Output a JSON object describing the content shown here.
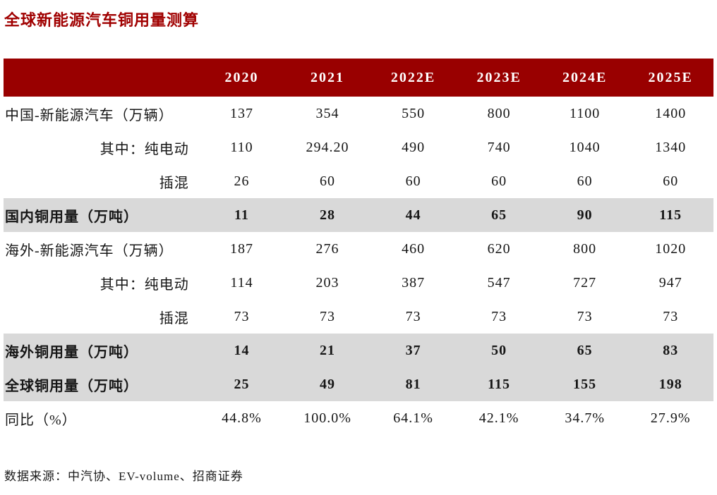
{
  "title": "全球新能源汽车铜用量测算",
  "source": "数据来源：中汽协、EV-volume、招商证券",
  "colors": {
    "header_bg": "#990000",
    "title_text": "#A00000",
    "highlight_row_bg": "#D9D9D9",
    "header_text": "#FFFFFF"
  },
  "table": {
    "columns": [
      "",
      "2020",
      "2021",
      "2022E",
      "2023E",
      "2024E",
      "2025E"
    ],
    "rows": [
      {
        "label": "中国-新能源汽车（万辆）",
        "style": "section",
        "values": [
          "137",
          "354",
          "550",
          "800",
          "1100",
          "1400"
        ]
      },
      {
        "label": "其中：纯电动",
        "style": "sub",
        "values": [
          "110",
          "294.20",
          "490",
          "740",
          "1040",
          "1340"
        ]
      },
      {
        "label": "插混",
        "style": "sub",
        "values": [
          "26",
          "60",
          "60",
          "60",
          "60",
          "60"
        ]
      },
      {
        "label": "国内铜用量（万吨）",
        "style": "highlight",
        "values": [
          "11",
          "28",
          "44",
          "65",
          "90",
          "115"
        ]
      },
      {
        "label": "海外-新能源汽车（万辆）",
        "style": "section",
        "values": [
          "187",
          "276",
          "460",
          "620",
          "800",
          "1020"
        ]
      },
      {
        "label": "其中：纯电动",
        "style": "sub",
        "values": [
          "114",
          "203",
          "387",
          "547",
          "727",
          "947"
        ]
      },
      {
        "label": "插混",
        "style": "sub",
        "values": [
          "73",
          "73",
          "73",
          "73",
          "73",
          "73"
        ]
      },
      {
        "label": "海外铜用量（万吨）",
        "style": "highlight",
        "values": [
          "14",
          "21",
          "37",
          "50",
          "65",
          "83"
        ]
      },
      {
        "label": "全球铜用量（万吨）",
        "style": "highlight",
        "values": [
          "25",
          "49",
          "81",
          "115",
          "155",
          "198"
        ]
      },
      {
        "label": "同比（%）",
        "style": "normal",
        "values": [
          "44.8%",
          "100.0%",
          "64.1%",
          "42.1%",
          "34.7%",
          "27.9%"
        ]
      }
    ]
  }
}
